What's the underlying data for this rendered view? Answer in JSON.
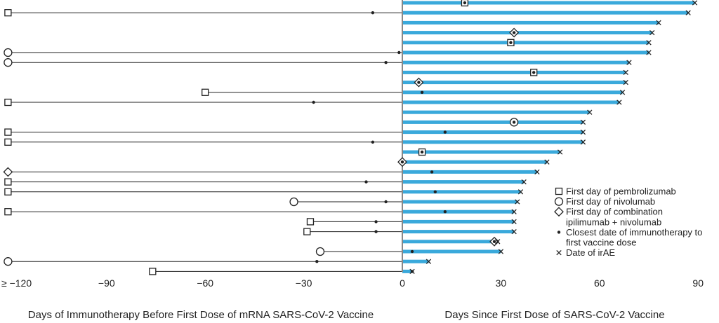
{
  "chart_data": {
    "type": "swimmer",
    "left_axis_label": "Days of Immunotherapy Before First Dose of mRNA SARS-CoV-2 Vaccine",
    "right_axis_label": "Days Since First Dose of SARS-CoV-2 Vaccine",
    "x_ticks": [
      {
        "value": -120,
        "label": "≥ −120"
      },
      {
        "value": -90,
        "label": "−90"
      },
      {
        "value": -60,
        "label": "−60"
      },
      {
        "value": -30,
        "label": "−30"
      },
      {
        "value": 0,
        "label": "0"
      },
      {
        "value": 30,
        "label": "30"
      },
      {
        "value": 60,
        "label": "60"
      },
      {
        "value": 90,
        "label": "90"
      }
    ],
    "xlim": [
      -122,
      96
    ],
    "colors": {
      "bar": "#3aa9db",
      "line": "#222222"
    },
    "legend": [
      {
        "marker": "square",
        "label": "First day of pembrolizumab"
      },
      {
        "marker": "circle",
        "label": "First day of nivolumab"
      },
      {
        "marker": "diamond",
        "label": "First day of combination",
        "label2": "ipilimumab + nivolumab"
      },
      {
        "marker": "dot",
        "label": "Closest date of immunotherapy to",
        "label2": "first vaccine dose"
      },
      {
        "marker": "x",
        "label": "Date of irAE"
      }
    ],
    "patients": [
      {
        "start": 19,
        "start_marker": "square",
        "dot": 19,
        "irae": 89
      },
      {
        "start": -120,
        "start_marker": "square",
        "dot": -9,
        "irae": 87
      },
      {
        "start": null,
        "start_marker": null,
        "dot": null,
        "irae": 78
      },
      {
        "start": 34,
        "start_marker": "diamond",
        "dot": 34,
        "irae": 76
      },
      {
        "start": 33,
        "start_marker": "square",
        "dot": 33,
        "irae": 75
      },
      {
        "start": -120,
        "start_marker": "circle",
        "dot": -1,
        "irae": 75
      },
      {
        "start": -120,
        "start_marker": "circle",
        "dot": -5,
        "irae": 69
      },
      {
        "start": 40,
        "start_marker": "square",
        "dot": 40,
        "irae": 68
      },
      {
        "start": 5,
        "start_marker": "diamond",
        "dot": 5,
        "irae": 68
      },
      {
        "start": -60,
        "start_marker": "square",
        "dot": 6,
        "irae": 67
      },
      {
        "start": -120,
        "start_marker": "square",
        "dot": -27,
        "irae": 66
      },
      {
        "start": null,
        "start_marker": null,
        "dot": null,
        "irae": 57
      },
      {
        "start": 34,
        "start_marker": "circle",
        "dot": 34,
        "irae": 55
      },
      {
        "start": -120,
        "start_marker": "square",
        "dot": 13,
        "irae": 55
      },
      {
        "start": -120,
        "start_marker": "square",
        "dot": -9,
        "irae": 55
      },
      {
        "start": 6,
        "start_marker": "square",
        "dot": 6,
        "irae": 48
      },
      {
        "start": 0,
        "start_marker": "diamond",
        "dot": 0,
        "irae": 44
      },
      {
        "start": -120,
        "start_marker": "diamond",
        "dot": 9,
        "irae": 41
      },
      {
        "start": -120,
        "start_marker": "square",
        "dot": -11,
        "irae": 37
      },
      {
        "start": -120,
        "start_marker": "square",
        "dot": 10,
        "irae": 36
      },
      {
        "start": -33,
        "start_marker": "circle",
        "dot": -5,
        "irae": 35
      },
      {
        "start": -120,
        "start_marker": "square",
        "dot": 13,
        "irae": 34
      },
      {
        "start": -28,
        "start_marker": "square",
        "dot": -8,
        "irae": 34
      },
      {
        "start": -29,
        "start_marker": "square",
        "dot": -8,
        "irae": 34
      },
      {
        "start": 28,
        "start_marker": "diamond",
        "dot": 28,
        "irae": 29
      },
      {
        "start": -25,
        "start_marker": "circle",
        "dot": 3,
        "irae": 30
      },
      {
        "start": -120,
        "start_marker": "circle",
        "dot": -26,
        "irae": 8
      },
      {
        "start": -76,
        "start_marker": "square",
        "dot": 3,
        "irae": 3
      }
    ]
  }
}
